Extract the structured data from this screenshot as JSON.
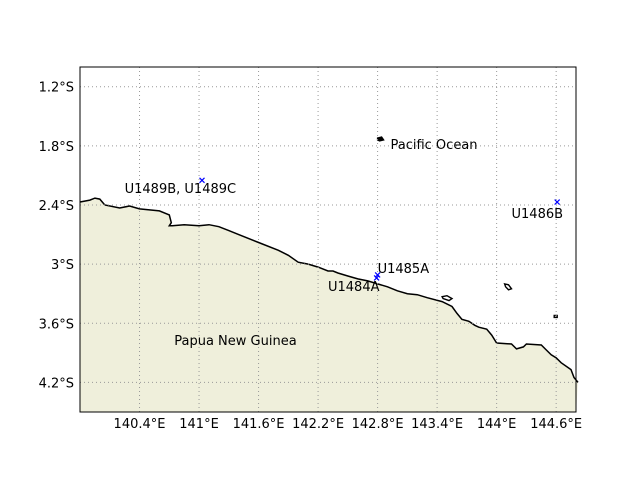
{
  "map": {
    "lon_range": [
      139.8,
      144.8
    ],
    "lat_range": [
      -4.5,
      -1.0
    ],
    "gridlines": true,
    "colors": {
      "land": "#efefdb",
      "ocean": "#ffffff",
      "coastline": "#000000",
      "grid": "#999999",
      "marker": "#0000ff"
    },
    "x_ticks": [
      {
        "value": 140.4,
        "label": "140.4°E"
      },
      {
        "value": 141.0,
        "label": "141°E"
      },
      {
        "value": 141.6,
        "label": "141.6°E"
      },
      {
        "value": 142.2,
        "label": "142.2°E"
      },
      {
        "value": 142.8,
        "label": "142.8°E"
      },
      {
        "value": 143.4,
        "label": "143.4°E"
      },
      {
        "value": 144.0,
        "label": "144°E"
      },
      {
        "value": 144.6,
        "label": "144.6°E"
      }
    ],
    "y_ticks": [
      {
        "value": -1.2,
        "label": "1.2°S"
      },
      {
        "value": -1.8,
        "label": "1.8°S"
      },
      {
        "value": -2.4,
        "label": "2.4°S"
      },
      {
        "value": -3.0,
        "label": "3°S"
      },
      {
        "value": -3.6,
        "label": "3.6°S"
      },
      {
        "value": -4.2,
        "label": "4.2°S"
      }
    ],
    "sites": [
      {
        "id": "U1489",
        "lon": 141.03,
        "lat": -2.15
      },
      {
        "id": "U1486",
        "lon": 144.61,
        "lat": -2.37
      },
      {
        "id": "U1485",
        "lon": 142.8,
        "lat": -3.11
      },
      {
        "id": "U1484",
        "lon": 142.79,
        "lat": -3.14
      }
    ],
    "labels": [
      {
        "text": "U1489B, U1489C",
        "lon": 140.25,
        "lat": -2.28
      },
      {
        "text": "U1486B",
        "lon": 144.15,
        "lat": -2.53
      },
      {
        "text": "U1485A",
        "lon": 142.8,
        "lat": -3.09
      },
      {
        "text": "U1484A",
        "lon": 142.3,
        "lat": -3.27
      },
      {
        "text": "Pacific Ocean",
        "lon": 142.93,
        "lat": -1.83
      },
      {
        "text": "Papua New Guinea",
        "lon": 140.75,
        "lat": -3.82
      }
    ],
    "coastline": [
      [
        139.8,
        -2.37
      ],
      [
        139.9,
        -2.35
      ],
      [
        139.95,
        -2.33
      ],
      [
        140.0,
        -2.34
      ],
      [
        140.05,
        -2.4
      ],
      [
        140.2,
        -2.43
      ],
      [
        140.3,
        -2.41
      ],
      [
        140.4,
        -2.44
      ],
      [
        140.6,
        -2.46
      ],
      [
        140.7,
        -2.5
      ],
      [
        140.72,
        -2.58
      ],
      [
        140.7,
        -2.61
      ],
      [
        140.73,
        -2.61
      ],
      [
        140.85,
        -2.6
      ],
      [
        141.0,
        -2.61
      ],
      [
        141.1,
        -2.6
      ],
      [
        141.2,
        -2.62
      ],
      [
        141.3,
        -2.66
      ],
      [
        141.4,
        -2.7
      ],
      [
        141.6,
        -2.78
      ],
      [
        141.8,
        -2.86
      ],
      [
        141.9,
        -2.91
      ],
      [
        142.0,
        -2.98
      ],
      [
        142.1,
        -3.0
      ],
      [
        142.2,
        -3.03
      ],
      [
        142.3,
        -3.07
      ],
      [
        142.35,
        -3.07
      ],
      [
        142.4,
        -3.09
      ],
      [
        142.5,
        -3.12
      ],
      [
        142.6,
        -3.15
      ],
      [
        142.7,
        -3.17
      ],
      [
        142.8,
        -3.2
      ],
      [
        142.9,
        -3.23
      ],
      [
        143.0,
        -3.27
      ],
      [
        143.1,
        -3.3
      ],
      [
        143.2,
        -3.31
      ],
      [
        143.3,
        -3.34
      ],
      [
        143.45,
        -3.38
      ],
      [
        143.55,
        -3.43
      ],
      [
        143.6,
        -3.5
      ],
      [
        143.65,
        -3.56
      ],
      [
        143.72,
        -3.58
      ],
      [
        143.78,
        -3.62
      ],
      [
        143.82,
        -3.64
      ],
      [
        143.9,
        -3.66
      ],
      [
        143.95,
        -3.72
      ],
      [
        144.0,
        -3.8
      ],
      [
        144.15,
        -3.81
      ],
      [
        144.2,
        -3.86
      ],
      [
        144.27,
        -3.84
      ],
      [
        144.3,
        -3.81
      ],
      [
        144.45,
        -3.82
      ],
      [
        144.5,
        -3.87
      ],
      [
        144.55,
        -3.92
      ],
      [
        144.6,
        -3.95
      ],
      [
        144.65,
        -4.0
      ],
      [
        144.75,
        -4.07
      ],
      [
        144.78,
        -4.15
      ],
      [
        144.82,
        -4.2
      ],
      [
        144.8,
        -4.5
      ],
      [
        139.8,
        -4.5
      ]
    ],
    "islands": [
      [
        [
          142.8,
          -1.72
        ],
        [
          142.84,
          -1.71
        ],
        [
          142.86,
          -1.74
        ],
        [
          142.82,
          -1.75
        ],
        [
          142.8,
          -1.74
        ]
      ],
      [
        [
          143.45,
          -3.33
        ],
        [
          143.5,
          -3.32
        ],
        [
          143.55,
          -3.35
        ],
        [
          143.52,
          -3.37
        ],
        [
          143.46,
          -3.35
        ]
      ],
      [
        [
          144.08,
          -3.2
        ],
        [
          144.12,
          -3.21
        ],
        [
          144.15,
          -3.25
        ],
        [
          144.12,
          -3.26
        ],
        [
          144.09,
          -3.23
        ]
      ],
      [
        [
          144.58,
          -3.52
        ],
        [
          144.61,
          -3.52
        ],
        [
          144.61,
          -3.54
        ],
        [
          144.58,
          -3.54
        ]
      ]
    ]
  }
}
